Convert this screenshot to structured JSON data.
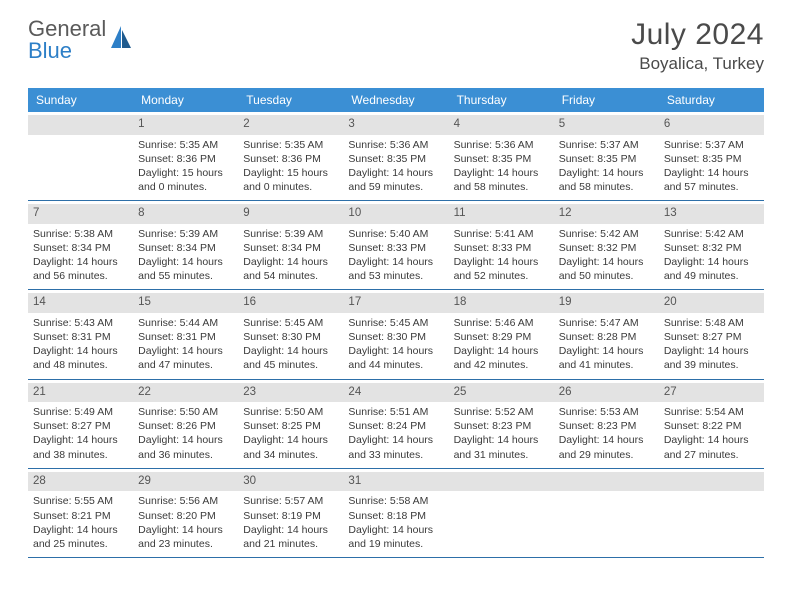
{
  "logo": {
    "word1": "General",
    "word2": "Blue"
  },
  "title": "July 2024",
  "location": "Boyalica, Turkey",
  "colors": {
    "header_bg": "#3b8fd4",
    "header_text": "#ffffff",
    "row_divider": "#2d6fa8",
    "daynum_bg": "#e3e3e3",
    "text": "#3a3a3a",
    "title_text": "#4a4a4a",
    "logo_gray": "#5a5a5a",
    "logo_blue": "#2d7fc7"
  },
  "weekdays": [
    "Sunday",
    "Monday",
    "Tuesday",
    "Wednesday",
    "Thursday",
    "Friday",
    "Saturday"
  ],
  "start_offset": 1,
  "days": [
    {
      "n": "1",
      "sr": "5:35 AM",
      "ss": "8:36 PM",
      "dl": "15 hours and 0 minutes."
    },
    {
      "n": "2",
      "sr": "5:35 AM",
      "ss": "8:36 PM",
      "dl": "15 hours and 0 minutes."
    },
    {
      "n": "3",
      "sr": "5:36 AM",
      "ss": "8:35 PM",
      "dl": "14 hours and 59 minutes."
    },
    {
      "n": "4",
      "sr": "5:36 AM",
      "ss": "8:35 PM",
      "dl": "14 hours and 58 minutes."
    },
    {
      "n": "5",
      "sr": "5:37 AM",
      "ss": "8:35 PM",
      "dl": "14 hours and 58 minutes."
    },
    {
      "n": "6",
      "sr": "5:37 AM",
      "ss": "8:35 PM",
      "dl": "14 hours and 57 minutes."
    },
    {
      "n": "7",
      "sr": "5:38 AM",
      "ss": "8:34 PM",
      "dl": "14 hours and 56 minutes."
    },
    {
      "n": "8",
      "sr": "5:39 AM",
      "ss": "8:34 PM",
      "dl": "14 hours and 55 minutes."
    },
    {
      "n": "9",
      "sr": "5:39 AM",
      "ss": "8:34 PM",
      "dl": "14 hours and 54 minutes."
    },
    {
      "n": "10",
      "sr": "5:40 AM",
      "ss": "8:33 PM",
      "dl": "14 hours and 53 minutes."
    },
    {
      "n": "11",
      "sr": "5:41 AM",
      "ss": "8:33 PM",
      "dl": "14 hours and 52 minutes."
    },
    {
      "n": "12",
      "sr": "5:42 AM",
      "ss": "8:32 PM",
      "dl": "14 hours and 50 minutes."
    },
    {
      "n": "13",
      "sr": "5:42 AM",
      "ss": "8:32 PM",
      "dl": "14 hours and 49 minutes."
    },
    {
      "n": "14",
      "sr": "5:43 AM",
      "ss": "8:31 PM",
      "dl": "14 hours and 48 minutes."
    },
    {
      "n": "15",
      "sr": "5:44 AM",
      "ss": "8:31 PM",
      "dl": "14 hours and 47 minutes."
    },
    {
      "n": "16",
      "sr": "5:45 AM",
      "ss": "8:30 PM",
      "dl": "14 hours and 45 minutes."
    },
    {
      "n": "17",
      "sr": "5:45 AM",
      "ss": "8:30 PM",
      "dl": "14 hours and 44 minutes."
    },
    {
      "n": "18",
      "sr": "5:46 AM",
      "ss": "8:29 PM",
      "dl": "14 hours and 42 minutes."
    },
    {
      "n": "19",
      "sr": "5:47 AM",
      "ss": "8:28 PM",
      "dl": "14 hours and 41 minutes."
    },
    {
      "n": "20",
      "sr": "5:48 AM",
      "ss": "8:27 PM",
      "dl": "14 hours and 39 minutes."
    },
    {
      "n": "21",
      "sr": "5:49 AM",
      "ss": "8:27 PM",
      "dl": "14 hours and 38 minutes."
    },
    {
      "n": "22",
      "sr": "5:50 AM",
      "ss": "8:26 PM",
      "dl": "14 hours and 36 minutes."
    },
    {
      "n": "23",
      "sr": "5:50 AM",
      "ss": "8:25 PM",
      "dl": "14 hours and 34 minutes."
    },
    {
      "n": "24",
      "sr": "5:51 AM",
      "ss": "8:24 PM",
      "dl": "14 hours and 33 minutes."
    },
    {
      "n": "25",
      "sr": "5:52 AM",
      "ss": "8:23 PM",
      "dl": "14 hours and 31 minutes."
    },
    {
      "n": "26",
      "sr": "5:53 AM",
      "ss": "8:23 PM",
      "dl": "14 hours and 29 minutes."
    },
    {
      "n": "27",
      "sr": "5:54 AM",
      "ss": "8:22 PM",
      "dl": "14 hours and 27 minutes."
    },
    {
      "n": "28",
      "sr": "5:55 AM",
      "ss": "8:21 PM",
      "dl": "14 hours and 25 minutes."
    },
    {
      "n": "29",
      "sr": "5:56 AM",
      "ss": "8:20 PM",
      "dl": "14 hours and 23 minutes."
    },
    {
      "n": "30",
      "sr": "5:57 AM",
      "ss": "8:19 PM",
      "dl": "14 hours and 21 minutes."
    },
    {
      "n": "31",
      "sr": "5:58 AM",
      "ss": "8:18 PM",
      "dl": "14 hours and 19 minutes."
    }
  ],
  "labels": {
    "sunrise": "Sunrise:",
    "sunset": "Sunset:",
    "daylight": "Daylight:"
  }
}
